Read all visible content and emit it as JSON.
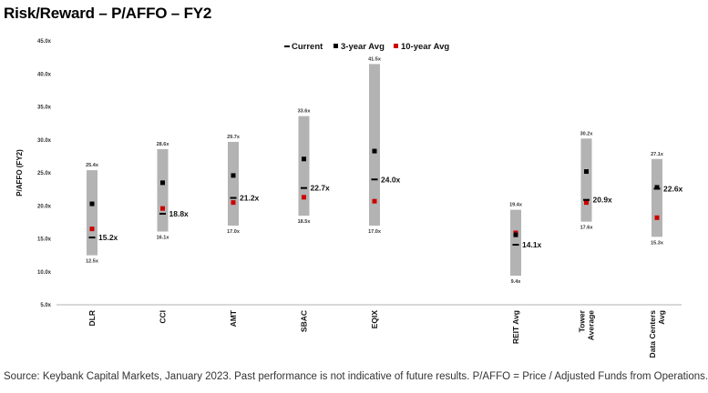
{
  "title": "Risk/Reward – P/AFFO – FY2",
  "footer": "Source: Keybank Capital Markets, January 2023. Past performance is not indicative of future results. P/AFFO = Price / Adjusted Funds from Operations.",
  "colors": {
    "range_bar": "#b3b3b3",
    "current": "#000000",
    "avg3": "#000000",
    "avg10": "#cc0000"
  },
  "chart_data": {
    "type": "range",
    "ylabel": "P/AFFO (FY2)",
    "ylim": [
      5,
      45
    ],
    "yticks": [
      "5.0x",
      "10.0x",
      "15.0x",
      "20.0x",
      "25.0x",
      "30.0x",
      "35.0x",
      "40.0x",
      "45.0x"
    ],
    "legend": {
      "current": "Current",
      "avg3": "3-year Avg",
      "avg10": "10-year Avg",
      "placement": "top-center"
    },
    "categories": [
      {
        "name": "DLR",
        "slot": 0,
        "low": 12.5,
        "high": 25.4,
        "low_label": "12.5x",
        "high_label": "25.4x",
        "current": 15.2,
        "current_label": "15.2x",
        "avg3": 20.3,
        "avg10": 16.5
      },
      {
        "name": "CCI",
        "slot": 1,
        "low": 16.1,
        "high": 28.6,
        "low_label": "16.1x",
        "high_label": "28.6x",
        "current": 18.8,
        "current_label": "18.8x",
        "avg3": 23.5,
        "avg10": 19.6
      },
      {
        "name": "AMT",
        "slot": 2,
        "low": 17.0,
        "high": 29.7,
        "low_label": "17.0x",
        "high_label": "29.7x",
        "current": 21.2,
        "current_label": "21.2x",
        "avg3": 24.6,
        "avg10": 20.5
      },
      {
        "name": "SBAC",
        "slot": 3,
        "low": 18.5,
        "high": 33.6,
        "low_label": "18.5x",
        "high_label": "33.6x",
        "current": 22.7,
        "current_label": "22.7x",
        "avg3": 27.1,
        "avg10": 21.3
      },
      {
        "name": "EQIX",
        "slot": 4,
        "low": 17.0,
        "high": 41.5,
        "low_label": "17.0x",
        "high_label": "41.5x",
        "current": 24.0,
        "current_label": "24.0x",
        "avg3": 28.3,
        "avg10": 20.7
      },
      {
        "name": "REIT Avg",
        "slot": 6,
        "low": 9.4,
        "high": 19.4,
        "low_label": "9.4x",
        "high_label": "19.4x",
        "current": 14.1,
        "current_label": "14.1x",
        "avg3": 15.6,
        "avg10": 15.9
      },
      {
        "name": "Tower Average",
        "lines": [
          "Tower",
          "Average"
        ],
        "slot": 7,
        "low": 17.6,
        "high": 30.2,
        "low_label": "17.6x",
        "high_label": "30.2x",
        "current": 20.9,
        "current_label": "20.9x",
        "avg3": 25.2,
        "avg10": 20.5
      },
      {
        "name": "Data Centers Avg",
        "lines": [
          "Data Centers",
          "Avg"
        ],
        "slot": 8,
        "low": 15.3,
        "high": 27.1,
        "low_label": "15.3x",
        "high_label": "27.1x",
        "current": 22.6,
        "current_label": "22.6x",
        "avg3": 22.8,
        "avg10": 18.2
      }
    ]
  }
}
